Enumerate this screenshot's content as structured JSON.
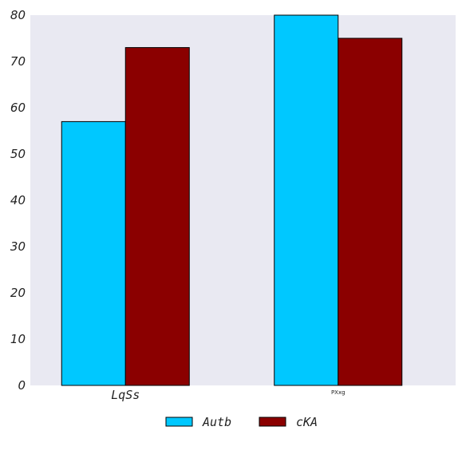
{
  "chart_data": {
    "type": "bar",
    "categories": [
      "LqSs",
      "PXxg"
    ],
    "series": [
      {
        "name": "Autb",
        "values": [
          57,
          80
        ],
        "color": "#00c8ff"
      },
      {
        "name": "cKA",
        "values": [
          73,
          75
        ],
        "color": "#8b0000"
      }
    ],
    "ylim": [
      0,
      80
    ],
    "yticks": [
      0,
      10,
      20,
      30,
      40,
      50,
      60,
      70,
      80
    ],
    "grid": false,
    "plot_background": "#e9e9f2",
    "legend_position": "bottom-center"
  }
}
